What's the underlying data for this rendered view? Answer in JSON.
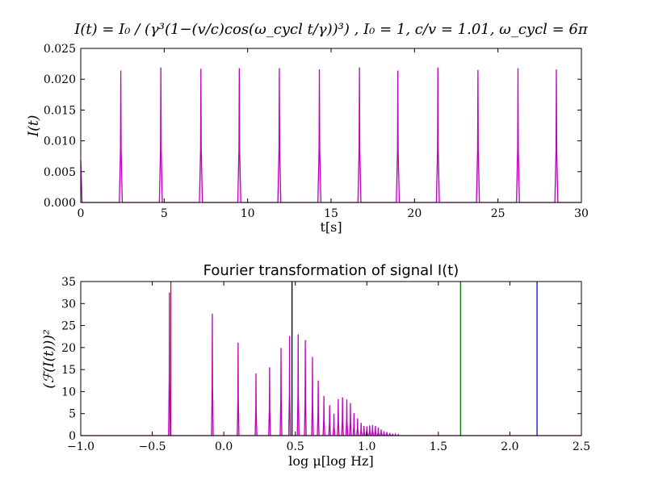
{
  "chart_data": [
    {
      "type": "line",
      "title": "I(t) = I₀ / (γ³(1−(v/c)cos(ω_cycl t/γ))³) , I₀ = 1, c/v = 1.01, ω_cycl = 6π",
      "xlabel": "t[s]",
      "ylabel": "I(t)",
      "xlim": [
        0,
        30
      ],
      "ylim": [
        0,
        0.025
      ],
      "xticks": [
        0,
        5,
        10,
        15,
        20,
        25,
        30
      ],
      "xtick_labels": [
        "0",
        "5",
        "10",
        "15",
        "20",
        "25",
        "30"
      ],
      "yticks": [
        0,
        0.005,
        0.01,
        0.015,
        0.02,
        0.025
      ],
      "ytick_labels": [
        "0.000",
        "0.005",
        "0.010",
        "0.015",
        "0.020",
        "0.025"
      ],
      "grid": false,
      "series": [
        {
          "color": "#bf00bf",
          "start": {
            "x": 0,
            "y": 0.0068
          },
          "peaks": [
            {
              "x": 2.4,
              "y": 0.0214
            },
            {
              "x": 4.8,
              "y": 0.0219
            },
            {
              "x": 7.2,
              "y": 0.0217
            },
            {
              "x": 9.5,
              "y": 0.0218
            },
            {
              "x": 11.9,
              "y": 0.0218
            },
            {
              "x": 14.3,
              "y": 0.0216
            },
            {
              "x": 16.7,
              "y": 0.0219
            },
            {
              "x": 19.0,
              "y": 0.0214
            },
            {
              "x": 21.4,
              "y": 0.0219
            },
            {
              "x": 23.8,
              "y": 0.0215
            },
            {
              "x": 26.2,
              "y": 0.0218
            },
            {
              "x": 28.5,
              "y": 0.0216
            }
          ]
        }
      ]
    },
    {
      "type": "line",
      "title": "Fourier transformation of signal I(t)",
      "xlabel": "log μ[log Hz]",
      "ylabel": "(ℱ(I(t)))²",
      "xlim": [
        -1.0,
        2.5
      ],
      "ylim": [
        0,
        35
      ],
      "xticks": [
        -1.0,
        -0.5,
        0.0,
        0.5,
        1.0,
        1.5,
        2.0,
        2.5
      ],
      "xtick_labels": [
        "−1.0",
        "−0.5",
        "0.0",
        "0.5",
        "1.0",
        "1.5",
        "2.0",
        "2.5"
      ],
      "yticks": [
        0,
        5,
        10,
        15,
        20,
        25,
        30,
        35
      ],
      "ytick_labels": [
        "0",
        "5",
        "10",
        "15",
        "20",
        "25",
        "30",
        "35"
      ],
      "grid": false,
      "series": [
        {
          "color": "#bf00bf",
          "peaks": [
            {
              "x": -0.38,
              "y": 32.5
            },
            {
              "x": -0.08,
              "y": 27.7
            },
            {
              "x": 0.1,
              "y": 21.1
            },
            {
              "x": 0.225,
              "y": 14.1
            },
            {
              "x": 0.32,
              "y": 15.5
            },
            {
              "x": 0.4,
              "y": 19.9
            },
            {
              "x": 0.46,
              "y": 22.6
            },
            {
              "x": 0.52,
              "y": 23.0
            },
            {
              "x": 0.57,
              "y": 21.7
            },
            {
              "x": 0.62,
              "y": 17.9
            },
            {
              "x": 0.66,
              "y": 12.5
            },
            {
              "x": 0.7,
              "y": 9.0
            },
            {
              "x": 0.74,
              "y": 6.9
            },
            {
              "x": 0.77,
              "y": 5.0
            },
            {
              "x": 0.8,
              "y": 8.3
            },
            {
              "x": 0.83,
              "y": 8.7
            },
            {
              "x": 0.86,
              "y": 8.2
            },
            {
              "x": 0.885,
              "y": 7.4
            },
            {
              "x": 0.91,
              "y": 5.1
            },
            {
              "x": 0.935,
              "y": 3.9
            },
            {
              "x": 0.96,
              "y": 2.9
            },
            {
              "x": 0.98,
              "y": 2.2
            },
            {
              "x": 1.0,
              "y": 2.1
            },
            {
              "x": 1.02,
              "y": 2.3
            },
            {
              "x": 1.04,
              "y": 2.4
            },
            {
              "x": 1.06,
              "y": 2.2
            },
            {
              "x": 1.08,
              "y": 1.8
            },
            {
              "x": 1.1,
              "y": 1.4
            },
            {
              "x": 1.12,
              "y": 1.0
            },
            {
              "x": 1.14,
              "y": 0.8
            },
            {
              "x": 1.16,
              "y": 0.6
            },
            {
              "x": 1.18,
              "y": 0.4
            },
            {
              "x": 1.2,
              "y": 0.3
            },
            {
              "x": 1.22,
              "y": 0.2
            }
          ]
        }
      ],
      "vertical_lines": [
        {
          "x": -0.37,
          "color": "#ff0000"
        },
        {
          "x": 0.477,
          "color": "#000000"
        },
        {
          "x": 1.655,
          "color": "#008000"
        },
        {
          "x": 2.19,
          "color": "#0000ff"
        }
      ]
    }
  ]
}
